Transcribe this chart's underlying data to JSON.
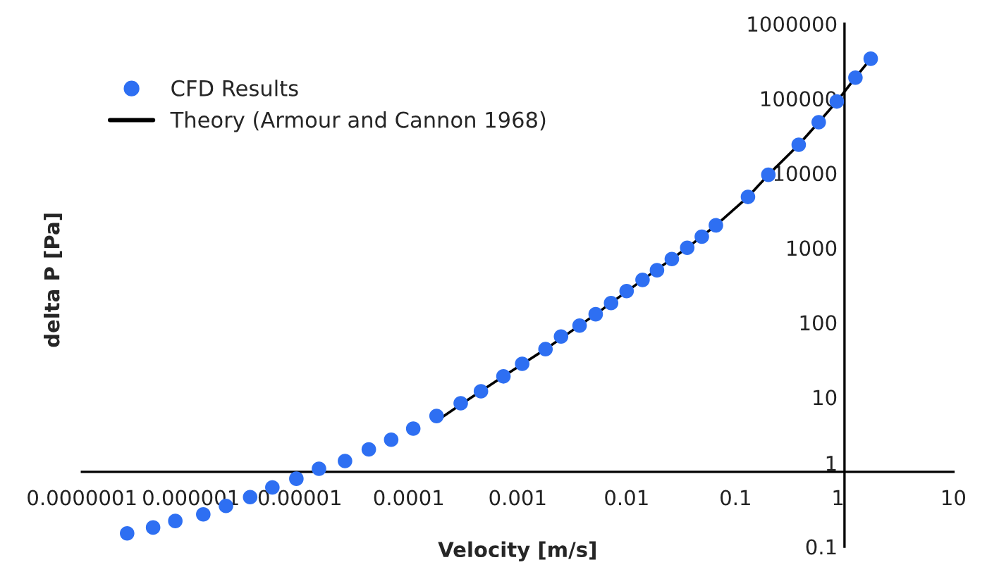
{
  "chart_data": {
    "type": "scatter",
    "xlabel": "Velocity [m/s]",
    "ylabel": "delta P [Pa]",
    "log": "xy",
    "grid": false,
    "legend": "top left",
    "xlim": [
      1e-07,
      10
    ],
    "ylim": [
      0.1,
      1000000
    ],
    "xticks": [
      {
        "value": 1e-07,
        "label": "0.0000001"
      },
      {
        "value": 1e-06,
        "label": "0.000001"
      },
      {
        "value": 1e-05,
        "label": "0.00001"
      },
      {
        "value": 0.0001,
        "label": "0.0001"
      },
      {
        "value": 0.001,
        "label": "0.001"
      },
      {
        "value": 0.01,
        "label": "0.01"
      },
      {
        "value": 0.1,
        "label": "0.1"
      },
      {
        "value": 1,
        "label": "1"
      },
      {
        "value": 10,
        "label": "10"
      }
    ],
    "yticks": [
      {
        "value": 0.1,
        "label": "0.1"
      },
      {
        "value": 1,
        "label": "1"
      },
      {
        "value": 10,
        "label": "10"
      },
      {
        "value": 100,
        "label": "100"
      },
      {
        "value": 1000,
        "label": "1000"
      },
      {
        "value": 10000,
        "label": "10000"
      },
      {
        "value": 100000,
        "label": "100000"
      },
      {
        "value": 1000000,
        "label": "1000000"
      }
    ],
    "series": [
      {
        "name": "CFD Results",
        "marker": "circle",
        "color": "#2e6ff2",
        "x": [
          2.6e-07,
          4.5e-07,
          7.2e-07,
          1.3e-06,
          2.1e-06,
          3.5e-06,
          5.6e-06,
          9.3e-06,
          1.5e-05,
          2.6e-05,
          4.3e-05,
          6.9e-05,
          0.00011,
          0.00018,
          0.0003,
          0.00046,
          0.00074,
          0.0011,
          0.0018,
          0.0025,
          0.0037,
          0.0052,
          0.0072,
          0.01,
          0.014,
          0.019,
          0.026,
          0.036,
          0.049,
          0.066,
          0.13,
          0.2,
          0.38,
          0.58,
          0.85,
          1.26,
          1.74
        ],
        "values": [
          0.15,
          0.18,
          0.22,
          0.27,
          0.35,
          0.46,
          0.62,
          0.81,
          1.1,
          1.4,
          2.0,
          2.7,
          3.8,
          5.6,
          8.3,
          12,
          19,
          28,
          44,
          65,
          91,
          129,
          182,
          263,
          372,
          501,
          708,
          1000,
          1410,
          2000,
          4800,
          9500,
          24000,
          48000,
          91000,
          190000,
          340000
        ]
      },
      {
        "name": "Theory (Armour and Cannon 1968)",
        "type": "line",
        "marker": "none",
        "color": "#000000",
        "line_style": "solid",
        "x": [
          0.00018,
          0.0003,
          0.00074,
          0.0018,
          0.0052,
          0.014,
          0.036,
          0.066,
          0.13,
          0.2,
          0.38,
          0.58,
          0.85,
          1.26,
          1.74
        ],
        "values": [
          4.8,
          8,
          19,
          44,
          129,
          372,
          1000,
          2000,
          4800,
          9500,
          24000,
          48000,
          91000,
          190000,
          340000
        ]
      }
    ]
  }
}
